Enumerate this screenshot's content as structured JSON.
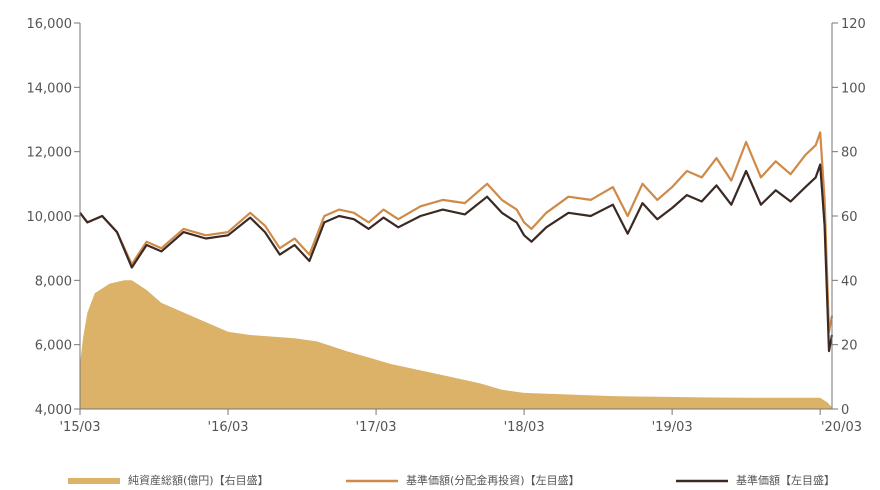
{
  "chart_data": {
    "type": "line",
    "title": "",
    "xlabel": "",
    "ylabel": "",
    "y_left": {
      "ylim": [
        4000,
        16000
      ],
      "ticks": [
        "4,000",
        "6,000",
        "8,000",
        "10,000",
        "12,000",
        "14,000",
        "16,000"
      ],
      "tick_values": [
        4000,
        6000,
        8000,
        10000,
        12000,
        14000,
        16000
      ]
    },
    "y_right": {
      "ylim": [
        0,
        120
      ],
      "ticks": [
        "0",
        "20",
        "40",
        "60",
        "80",
        "100",
        "120"
      ],
      "tick_values": [
        0,
        20,
        40,
        60,
        80,
        100,
        120
      ]
    },
    "x_ticks": [
      "'15/03",
      "'16/03",
      "'17/03",
      "'18/03",
      "'19/03",
      "'20/03"
    ],
    "x_tick_values": [
      2015.0,
      2016.0,
      2017.0,
      2018.0,
      2019.0,
      2020.0
    ],
    "x_range": [
      2015.0,
      2020.08
    ],
    "grid": false,
    "legend_position": "bottom",
    "colors": {
      "area": "#dbb268",
      "reinvested": "#cf8a48",
      "nav": "#3b2a24",
      "axis": "#777777"
    },
    "series": [
      {
        "name": "純資産総額(億円)【右目盛】",
        "kind": "area",
        "axis": "right",
        "x": [
          2015.0,
          2015.02,
          2015.05,
          2015.1,
          2015.2,
          2015.3,
          2015.35,
          2015.45,
          2015.55,
          2015.7,
          2015.85,
          2016.0,
          2016.15,
          2016.3,
          2016.45,
          2016.6,
          2016.8,
          2016.95,
          2017.1,
          2017.3,
          2017.5,
          2017.7,
          2017.85,
          2018.0,
          2018.3,
          2018.6,
          2018.9,
          2019.2,
          2019.5,
          2019.8,
          2020.0,
          2020.05,
          2020.08
        ],
        "y": [
          14,
          22,
          30,
          36,
          39,
          40,
          40,
          37,
          33,
          30,
          27,
          24,
          23,
          22.5,
          22,
          21,
          18,
          16,
          14,
          12,
          10,
          8,
          6,
          5,
          4.5,
          4,
          3.8,
          3.6,
          3.5,
          3.5,
          3.5,
          2,
          0.5
        ]
      },
      {
        "name": "基準価額(分配金再投資)【左目盛】",
        "kind": "line",
        "axis": "left",
        "x": [
          2015.0,
          2015.05,
          2015.15,
          2015.25,
          2015.35,
          2015.45,
          2015.55,
          2015.7,
          2015.85,
          2016.0,
          2016.15,
          2016.25,
          2016.35,
          2016.45,
          2016.55,
          2016.65,
          2016.75,
          2016.85,
          2016.95,
          2017.05,
          2017.15,
          2017.3,
          2017.45,
          2017.6,
          2017.75,
          2017.85,
          2017.95,
          2018.0,
          2018.05,
          2018.15,
          2018.3,
          2018.45,
          2018.6,
          2018.7,
          2018.8,
          2018.9,
          2019.0,
          2019.1,
          2019.2,
          2019.3,
          2019.4,
          2019.5,
          2019.6,
          2019.7,
          2019.8,
          2019.9,
          2019.97,
          2020.0,
          2020.03,
          2020.06,
          2020.08
        ],
        "y": [
          10100,
          9800,
          10000,
          9500,
          8500,
          9200,
          9000,
          9600,
          9400,
          9500,
          10100,
          9700,
          9000,
          9300,
          8800,
          10000,
          10200,
          10100,
          9800,
          10200,
          9900,
          10300,
          10500,
          10400,
          11000,
          10500,
          10200,
          9800,
          9600,
          10100,
          10600,
          10500,
          10900,
          10000,
          11000,
          10500,
          10900,
          11400,
          11200,
          11800,
          11100,
          12300,
          11200,
          11700,
          11300,
          11900,
          12200,
          12600,
          10500,
          6400,
          6900
        ]
      },
      {
        "name": "基準価額【左目盛】",
        "kind": "line",
        "axis": "left",
        "x": [
          2015.0,
          2015.05,
          2015.15,
          2015.25,
          2015.35,
          2015.45,
          2015.55,
          2015.7,
          2015.85,
          2016.0,
          2016.15,
          2016.25,
          2016.35,
          2016.45,
          2016.55,
          2016.65,
          2016.75,
          2016.85,
          2016.95,
          2017.05,
          2017.15,
          2017.3,
          2017.45,
          2017.6,
          2017.75,
          2017.85,
          2017.95,
          2018.0,
          2018.05,
          2018.15,
          2018.3,
          2018.45,
          2018.6,
          2018.7,
          2018.8,
          2018.9,
          2019.0,
          2019.1,
          2019.2,
          2019.3,
          2019.4,
          2019.5,
          2019.6,
          2019.7,
          2019.8,
          2019.9,
          2019.97,
          2020.0,
          2020.03,
          2020.06,
          2020.08
        ],
        "y": [
          10100,
          9800,
          10000,
          9500,
          8400,
          9100,
          8900,
          9500,
          9300,
          9400,
          9950,
          9500,
          8800,
          9100,
          8600,
          9800,
          10000,
          9900,
          9600,
          9950,
          9650,
          10000,
          10200,
          10050,
          10600,
          10100,
          9800,
          9400,
          9200,
          9650,
          10100,
          10000,
          10350,
          9450,
          10400,
          9900,
          10250,
          10650,
          10450,
          10950,
          10350,
          11400,
          10350,
          10800,
          10450,
          10900,
          11200,
          11600,
          9700,
          5800,
          6300
        ]
      }
    ]
  }
}
